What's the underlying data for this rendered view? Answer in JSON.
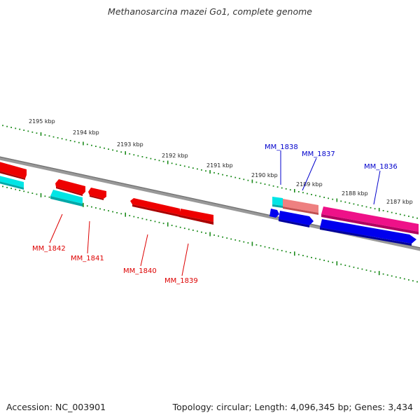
{
  "title": "Methanosarcina mazei Go1, complete genome",
  "footer": {
    "accession": "Accession: NC_003901",
    "summary": "Topology: circular; Length: 4,096,345 bp; Genes: 3,434"
  },
  "ticks": [
    {
      "text": "2195 kbp"
    },
    {
      "text": "2194 kbp"
    },
    {
      "text": "2193 kbp"
    },
    {
      "text": "2192 kbp"
    },
    {
      "text": "2191 kbp"
    },
    {
      "text": "2190 kbp"
    },
    {
      "text": "2189 kbp"
    },
    {
      "text": "2188 kbp"
    },
    {
      "text": "2187 kbp"
    }
  ],
  "genes_forward": [
    {
      "name": "MM_1838",
      "color": "#0000cc"
    },
    {
      "name": "MM_1837",
      "color": "#0000cc"
    },
    {
      "name": "MM_1836",
      "color": "#0000cc"
    }
  ],
  "genes_reverse": [
    {
      "name": "MM_1842",
      "color": "#dd0000"
    },
    {
      "name": "MM_1841",
      "color": "#dd0000"
    },
    {
      "name": "MM_1840",
      "color": "#dd0000"
    },
    {
      "name": "MM_1839",
      "color": "#dd0000"
    }
  ],
  "colors": {
    "backbone": "#808080",
    "tick": "#1a8a1a",
    "red_gene": "#ee0000",
    "cyan_gene": "#00e5e5",
    "blue_gene": "#0000ee",
    "pink_gene": "#ee1188",
    "salmon_gene": "#ee8080"
  }
}
